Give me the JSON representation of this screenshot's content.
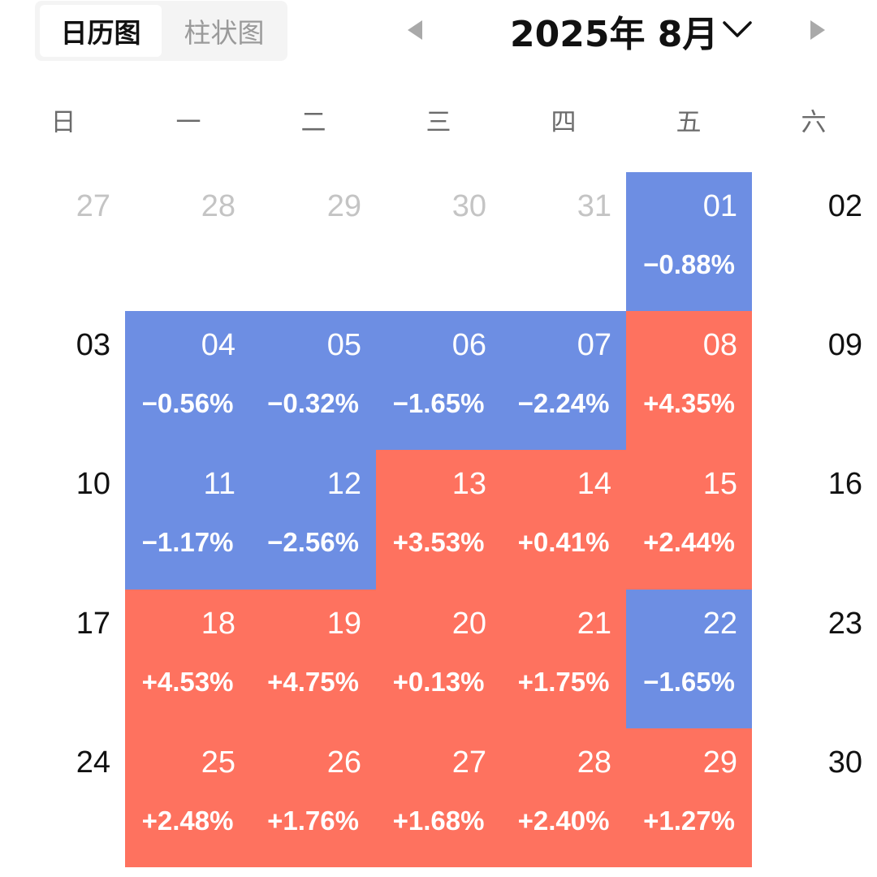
{
  "view_toggle": {
    "calendar_label": "日历图",
    "bar_label": "柱状图"
  },
  "header": {
    "month_label": "2025年 8月",
    "prev_icon": "triangle-left-icon",
    "next_icon": "triangle-right-icon",
    "dropdown_icon": "chevron-down-icon"
  },
  "weekdays": [
    "日",
    "一",
    "二",
    "三",
    "四",
    "五",
    "六"
  ],
  "colors": {
    "up": "#fe725f",
    "down": "#6d8ee3",
    "muted": "#c4c4c4",
    "text": "#111111"
  },
  "weeks": [
    [
      {
        "day": "27",
        "state": "other"
      },
      {
        "day": "28",
        "state": "other"
      },
      {
        "day": "29",
        "state": "other"
      },
      {
        "day": "30",
        "state": "other"
      },
      {
        "day": "31",
        "state": "other"
      },
      {
        "day": "01",
        "state": "down",
        "change": "−0.88%"
      },
      {
        "day": "02",
        "state": "weekend"
      }
    ],
    [
      {
        "day": "03",
        "state": "weekend"
      },
      {
        "day": "04",
        "state": "down",
        "change": "−0.56%"
      },
      {
        "day": "05",
        "state": "down",
        "change": "−0.32%"
      },
      {
        "day": "06",
        "state": "down",
        "change": "−1.65%"
      },
      {
        "day": "07",
        "state": "down",
        "change": "−2.24%"
      },
      {
        "day": "08",
        "state": "up",
        "change": "+4.35%"
      },
      {
        "day": "09",
        "state": "weekend"
      }
    ],
    [
      {
        "day": "10",
        "state": "weekend"
      },
      {
        "day": "11",
        "state": "down",
        "change": "−1.17%"
      },
      {
        "day": "12",
        "state": "down",
        "change": "−2.56%"
      },
      {
        "day": "13",
        "state": "up",
        "change": "+3.53%"
      },
      {
        "day": "14",
        "state": "up",
        "change": "+0.41%"
      },
      {
        "day": "15",
        "state": "up",
        "change": "+2.44%"
      },
      {
        "day": "16",
        "state": "weekend"
      }
    ],
    [
      {
        "day": "17",
        "state": "weekend"
      },
      {
        "day": "18",
        "state": "up",
        "change": "+4.53%"
      },
      {
        "day": "19",
        "state": "up",
        "change": "+4.75%"
      },
      {
        "day": "20",
        "state": "up",
        "change": "+0.13%"
      },
      {
        "day": "21",
        "state": "up",
        "change": "+1.75%"
      },
      {
        "day": "22",
        "state": "down",
        "change": "−1.65%"
      },
      {
        "day": "23",
        "state": "weekend"
      }
    ],
    [
      {
        "day": "24",
        "state": "weekend"
      },
      {
        "day": "25",
        "state": "up",
        "change": "+2.48%"
      },
      {
        "day": "26",
        "state": "up",
        "change": "+1.76%"
      },
      {
        "day": "27",
        "state": "up",
        "change": "+1.68%"
      },
      {
        "day": "28",
        "state": "up",
        "change": "+2.40%"
      },
      {
        "day": "29",
        "state": "up",
        "change": "+1.27%"
      },
      {
        "day": "30",
        "state": "weekend"
      }
    ]
  ]
}
